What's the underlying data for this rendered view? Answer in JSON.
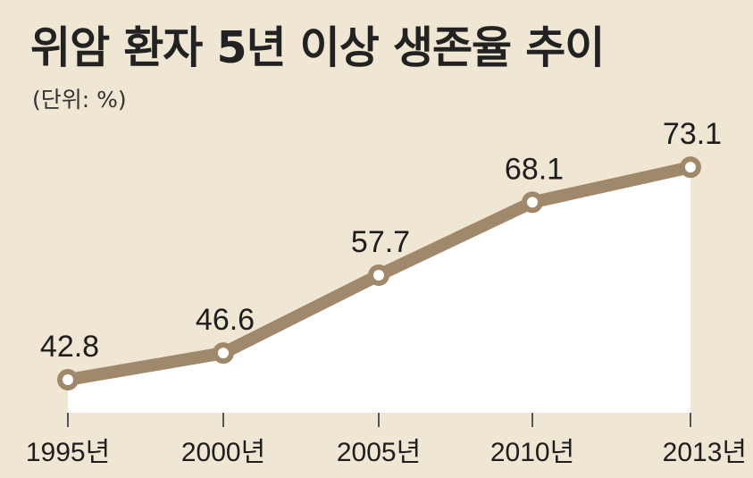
{
  "title": "위암 환자 5년 이상 생존율 추이",
  "unit_note": "(단위: %)",
  "colors": {
    "background": "#efe6d3",
    "area": "#ffffff",
    "line": "#a0896b",
    "marker_fill": "#ffffff",
    "text": "#1e1e1e"
  },
  "chart_data": {
    "type": "area",
    "categories": [
      "1995년",
      "2000년",
      "2005년",
      "2010년",
      "2013년"
    ],
    "values": [
      42.8,
      46.6,
      57.7,
      68.1,
      73.1
    ],
    "value_labels": [
      "42.8",
      "46.6",
      "57.7",
      "68.1",
      "73.1"
    ],
    "title": "위암 환자 5년 이상 생존율 추이",
    "ylabel": "(단위: %)",
    "grid": false,
    "legend": "none"
  }
}
